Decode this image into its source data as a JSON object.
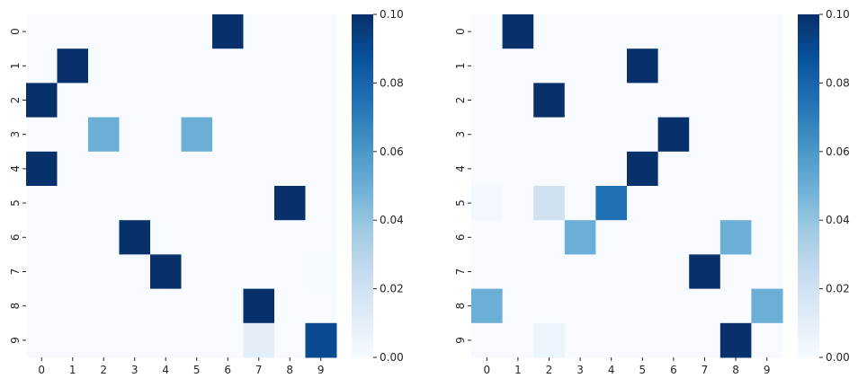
{
  "chart_data": [
    {
      "type": "heatmap",
      "title": "",
      "xlabel": "",
      "ylabel": "",
      "x_ticks": [
        "0",
        "1",
        "2",
        "3",
        "4",
        "5",
        "6",
        "7",
        "8",
        "9"
      ],
      "y_ticks": [
        "0",
        "1",
        "2",
        "3",
        "4",
        "5",
        "6",
        "7",
        "8",
        "9"
      ],
      "vmin": 0.0,
      "vmax": 0.1,
      "colormap": "Blues",
      "colorbar_ticks": [
        "0.00",
        "0.02",
        "0.04",
        "0.06",
        "0.08",
        "0.10"
      ],
      "matrix": [
        [
          0,
          0,
          0,
          0,
          0,
          0,
          0.1,
          0,
          0,
          0
        ],
        [
          0,
          0.1,
          0,
          0,
          0,
          0,
          0,
          0,
          0,
          0
        ],
        [
          0.1,
          0,
          0,
          0,
          0,
          0,
          0,
          0,
          0,
          0
        ],
        [
          0,
          0,
          0.05,
          0,
          0,
          0.05,
          0,
          0,
          0,
          0
        ],
        [
          0.1,
          0,
          0,
          0,
          0,
          0,
          0,
          0,
          0,
          0
        ],
        [
          0,
          0,
          0,
          0,
          0,
          0,
          0,
          0,
          0.1,
          0
        ],
        [
          0,
          0,
          0,
          0.1,
          0,
          0,
          0,
          0,
          0,
          0
        ],
        [
          0,
          0,
          0,
          0,
          0.1,
          0,
          0,
          0,
          0,
          0.001
        ],
        [
          0,
          0,
          0,
          0,
          0,
          0,
          0,
          0.1,
          0,
          0
        ],
        [
          0,
          0,
          0,
          0,
          0,
          0,
          0,
          0.01,
          0,
          0.09
        ]
      ]
    },
    {
      "type": "heatmap",
      "title": "",
      "xlabel": "",
      "ylabel": "",
      "x_ticks": [
        "0",
        "1",
        "2",
        "3",
        "4",
        "5",
        "6",
        "7",
        "8",
        "9"
      ],
      "y_ticks": [
        "0",
        "1",
        "2",
        "3",
        "4",
        "5",
        "6",
        "7",
        "8",
        "9"
      ],
      "vmin": 0.0,
      "vmax": 0.1,
      "colormap": "Blues",
      "colorbar_ticks": [
        "0.00",
        "0.02",
        "0.04",
        "0.06",
        "0.08",
        "0.10"
      ],
      "matrix": [
        [
          0,
          0.1,
          0,
          0,
          0,
          0,
          0,
          0,
          0,
          0
        ],
        [
          0,
          0,
          0,
          0,
          0,
          0.1,
          0,
          0,
          0,
          0
        ],
        [
          0,
          0,
          0.1,
          0,
          0,
          0,
          0,
          0,
          0,
          0
        ],
        [
          0,
          0,
          0,
          0,
          0,
          0,
          0.1,
          0,
          0,
          0
        ],
        [
          0,
          0,
          0,
          0,
          0,
          0.1,
          0,
          0,
          0,
          0
        ],
        [
          0.002,
          0,
          0.02,
          0,
          0.075,
          0,
          0,
          0,
          0,
          0
        ],
        [
          0,
          0,
          0,
          0.05,
          0,
          0,
          0,
          0,
          0.05,
          0
        ],
        [
          0,
          0,
          0,
          0,
          0,
          0,
          0,
          0.1,
          0,
          0
        ],
        [
          0.05,
          0,
          0,
          0,
          0,
          0,
          0,
          0,
          0,
          0.05
        ],
        [
          0,
          0,
          0.005,
          0,
          0,
          0,
          0,
          0,
          0.1,
          0
        ]
      ]
    }
  ]
}
